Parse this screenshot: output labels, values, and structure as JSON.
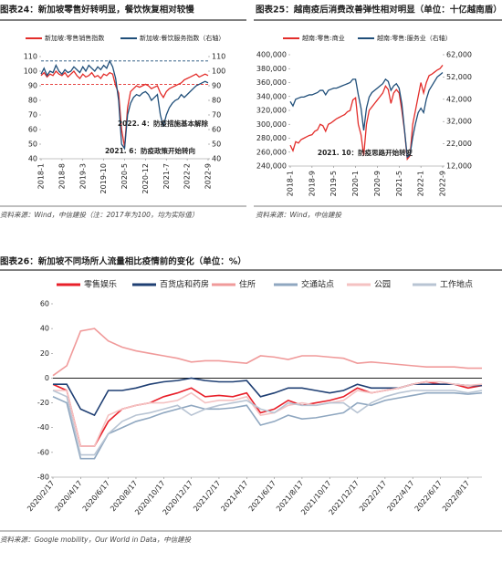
{
  "chart_data": [
    {
      "type": "line",
      "title": "图表24：新加坡零售好转明显，餐饮恢复相对较慢",
      "categories": [
        "2018-1",
        null,
        null,
        null,
        null,
        null,
        null,
        "2018-8",
        null,
        null,
        null,
        null,
        null,
        null,
        "2019-3",
        null,
        null,
        null,
        null,
        null,
        null,
        "2019-10",
        null,
        null,
        null,
        null,
        null,
        null,
        "2020-5",
        null,
        null,
        null,
        null,
        null,
        null,
        "2020-12",
        null,
        null,
        null,
        null,
        null,
        null,
        "2021-7",
        null,
        null,
        null,
        null,
        null,
        null,
        "2022-2",
        null,
        null,
        null,
        null,
        null,
        null,
        "2022-9"
      ],
      "series": [
        {
          "name": "新加坡:零售销售指数",
          "color": "#e32d2a",
          "values": [
            97,
            99,
            96,
            98,
            97,
            100,
            98,
            97,
            99,
            96,
            98,
            100,
            97,
            95,
            98,
            96,
            97,
            99,
            96,
            97,
            95,
            98,
            97,
            99,
            98,
            90,
            85,
            60,
            48,
            75,
            86,
            88,
            90,
            89,
            90,
            91,
            90,
            88,
            89,
            90,
            85,
            82,
            86,
            88,
            89,
            90,
            91,
            92,
            94,
            95,
            96,
            97,
            98,
            96,
            97,
            98,
            97
          ]
        },
        {
          "name": "新加坡:餐饮服务指数（右轴）",
          "color": "#1f4e79",
          "axis": "y2",
          "values": [
            98,
            102,
            97,
            100,
            99,
            104,
            100,
            98,
            101,
            99,
            100,
            103,
            101,
            99,
            103,
            100,
            104,
            102,
            100,
            103,
            101,
            104,
            102,
            107,
            103,
            95,
            80,
            50,
            47,
            70,
            78,
            82,
            84,
            83,
            85,
            86,
            84,
            80,
            82,
            84,
            70,
            62,
            70,
            75,
            78,
            80,
            81,
            84,
            82,
            84,
            86,
            88,
            90,
            91,
            92,
            93,
            92
          ]
        }
      ],
      "ylim": [
        40,
        110
      ],
      "yticks": [
        40,
        50,
        60,
        70,
        80,
        90,
        100,
        110
      ],
      "y2lim": [
        40,
        110
      ],
      "y2ticks": [
        40,
        50,
        60,
        70,
        80,
        90,
        100,
        110
      ],
      "hlines": [
        {
          "value": 107,
          "axis": "y2",
          "color": "#1f4e79"
        },
        {
          "value": 91,
          "color": "#e32d2a"
        }
      ],
      "annotations": [
        "2022. 4：防疫措施基本解除",
        "2021. 6：防疫政策开始转向"
      ],
      "source": "资料来源：Wind，中信建投（注：2017年为100，均为实际值）"
    },
    {
      "type": "line",
      "title": "图表25：越南疫后消费改善弹性相对明显（单位：十亿越南盾）",
      "categories": [
        "2018-1",
        null,
        null,
        null,
        null,
        null,
        null,
        null,
        "2018-9",
        null,
        null,
        null,
        null,
        null,
        null,
        null,
        "2019-5",
        null,
        null,
        null,
        null,
        null,
        null,
        null,
        "2020-1",
        null,
        null,
        null,
        null,
        null,
        null,
        null,
        "2020-9",
        null,
        null,
        null,
        null,
        null,
        null,
        null,
        "2021-5",
        null,
        null,
        null,
        null,
        null,
        null,
        null,
        "2022-1",
        null,
        null,
        null,
        null,
        null,
        null,
        null,
        "2022-9"
      ],
      "series": [
        {
          "name": "越南:零售:商业",
          "color": "#e32d2a",
          "values": [
            270000,
            262000,
            275000,
            273000,
            278000,
            280000,
            282000,
            284000,
            285000,
            290000,
            292000,
            300000,
            298000,
            290000,
            300000,
            302000,
            305000,
            308000,
            310000,
            312000,
            314000,
            318000,
            320000,
            335000,
            338000,
            300000,
            285000,
            255000,
            300000,
            320000,
            325000,
            330000,
            335000,
            340000,
            345000,
            355000,
            350000,
            330000,
            345000,
            350000,
            345000,
            320000,
            290000,
            250000,
            255000,
            300000,
            320000,
            340000,
            360000,
            345000,
            360000,
            370000,
            372000,
            375000,
            378000,
            380000,
            385000
          ]
        },
        {
          "name": "越南:零售:服务业（右轴）",
          "color": "#1f4e79",
          "axis": "y2",
          "values": [
            41000,
            39000,
            42000,
            42500,
            43000,
            43000,
            43500,
            44000,
            44000,
            44500,
            45000,
            46000,
            46000,
            44000,
            46000,
            46500,
            47000,
            47000,
            47500,
            48000,
            48500,
            49000,
            49500,
            51000,
            51000,
            44000,
            38000,
            28000,
            38000,
            43000,
            45000,
            46000,
            47000,
            48000,
            49000,
            51000,
            50000,
            46000,
            48000,
            49000,
            47000,
            40000,
            28000,
            16000,
            17000,
            25000,
            31000,
            36000,
            38000,
            36000,
            42000,
            46000,
            48000,
            50000,
            52000,
            53000,
            54000
          ]
        }
      ],
      "ylim": [
        240000,
        400000
      ],
      "yticks": [
        {
          "value": 240000,
          "label": "240,000"
        },
        {
          "value": 260000,
          "label": "260,000"
        },
        {
          "value": 280000,
          "label": "280,000"
        },
        {
          "value": 300000,
          "label": "300,000"
        },
        {
          "value": 320000,
          "label": "320,000"
        },
        {
          "value": 340000,
          "label": "340,000"
        },
        {
          "value": 360000,
          "label": "360,000"
        },
        {
          "value": 380000,
          "label": "380,000"
        },
        {
          "value": 400000,
          "label": "400,000"
        }
      ],
      "y2lim": [
        12000,
        62000
      ],
      "y2ticks": [
        {
          "value": 12000,
          "label": "12,000"
        },
        {
          "value": 22000,
          "label": "22,000"
        },
        {
          "value": 32000,
          "label": "32,000"
        },
        {
          "value": 42000,
          "label": "42,000"
        },
        {
          "value": 52000,
          "label": "52,000"
        },
        {
          "value": 62000,
          "label": "62,000"
        }
      ],
      "annotations": [
        "2021. 10：防疫思路开始转变"
      ],
      "source": "资料来源：Wind，中信建投"
    },
    {
      "type": "line",
      "title": "图表26：新加坡不同场所人流量相比疫情前的变化（单位：%）",
      "categories": [
        "2020/2/17",
        null,
        "2020/4/17",
        null,
        "2020/6/17",
        null,
        "2020/8/17",
        null,
        "2020/10/17",
        null,
        "2020/12/17",
        null,
        "2021/2/17",
        null,
        "2021/4/17",
        null,
        "2021/6/17",
        null,
        "2021/8/17",
        null,
        "2021/10/17",
        null,
        "2021/12/17",
        null,
        "2022/2/17",
        null,
        "2022/4/17",
        null,
        "2022/6/17",
        null,
        "2022/8/17",
        null
      ],
      "series": [
        {
          "name": "零售娱乐",
          "color": "#e8202a",
          "values": [
            -5,
            -10,
            -55,
            -55,
            -35,
            -25,
            -22,
            -20,
            -15,
            -12,
            -8,
            -15,
            -14,
            -15,
            -12,
            -28,
            -25,
            -18,
            -22,
            -20,
            -18,
            -15,
            -8,
            -12,
            -10,
            -8,
            -5,
            -3,
            -5,
            -5,
            -8,
            -6
          ]
        },
        {
          "name": "百货店和药房",
          "color": "#1f3f73",
          "values": [
            -5,
            -5,
            -25,
            -30,
            -10,
            -10,
            -8,
            -5,
            -3,
            -2,
            0,
            -2,
            -3,
            -3,
            -2,
            -15,
            -12,
            -8,
            -8,
            -10,
            -12,
            -10,
            -5,
            -8,
            -8,
            -8,
            -5,
            -5,
            -5,
            -5,
            -6,
            -6
          ]
        },
        {
          "name": "住所",
          "color": "#f09a9a",
          "values": [
            2,
            10,
            38,
            40,
            30,
            25,
            22,
            20,
            18,
            16,
            13,
            14,
            14,
            13,
            12,
            18,
            17,
            15,
            18,
            18,
            17,
            16,
            12,
            13,
            12,
            11,
            10,
            9,
            9,
            9,
            8,
            8
          ]
        },
        {
          "name": "交通站点",
          "color": "#8fa7c0",
          "values": [
            -15,
            -20,
            -65,
            -65,
            -45,
            -40,
            -35,
            -32,
            -28,
            -25,
            -22,
            -25,
            -25,
            -24,
            -22,
            -38,
            -35,
            -30,
            -33,
            -32,
            -30,
            -28,
            -20,
            -22,
            -18,
            -16,
            -14,
            -12,
            -12,
            -12,
            -13,
            -12
          ]
        },
        {
          "name": "公园",
          "color": "#f4c2c2",
          "values": [
            -10,
            -10,
            -55,
            -55,
            -30,
            -25,
            -22,
            -20,
            -20,
            -18,
            -12,
            -20,
            -18,
            -18,
            -15,
            -30,
            -28,
            -22,
            -20,
            -22,
            -20,
            -18,
            -10,
            -12,
            -10,
            -8,
            -5,
            -3,
            -3,
            -5,
            -6,
            -5
          ]
        },
        {
          "name": "工作地点",
          "color": "#b8c4d3",
          "values": [
            -10,
            -15,
            -62,
            -62,
            -45,
            -35,
            -30,
            -28,
            -25,
            -22,
            -30,
            -25,
            -22,
            -20,
            -18,
            -25,
            -28,
            -20,
            -22,
            -22,
            -20,
            -20,
            -28,
            -20,
            -15,
            -12,
            -10,
            -10,
            -10,
            -10,
            -12,
            -10
          ]
        }
      ],
      "ylim": [
        -80,
        60
      ],
      "yticks": [
        -80,
        -60,
        -40,
        -20,
        0,
        20,
        40,
        60
      ],
      "source": "资料来源：Google mobility，Our World in Data，中信建投"
    }
  ]
}
